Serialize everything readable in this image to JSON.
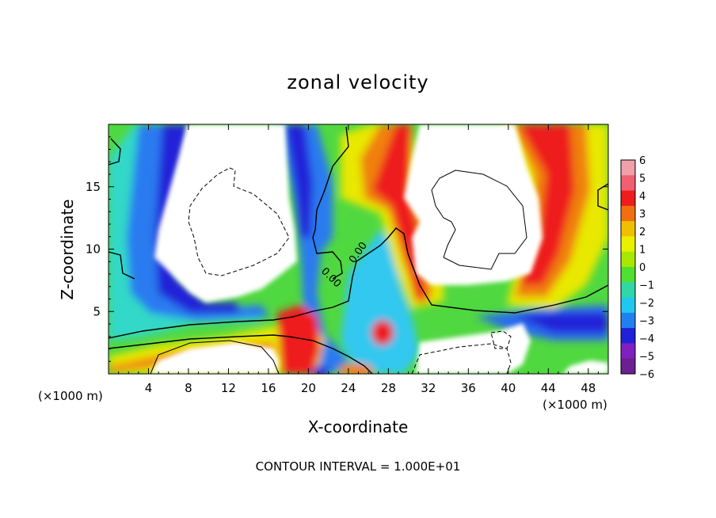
{
  "chart_data": {
    "type": "heatmap",
    "title": "zonal velocity",
    "xlabel": "X-coordinate",
    "ylabel": "Z-coordinate",
    "x_unit_label": "(×1000 m)",
    "x_unit_label_right": "(×1000 m)",
    "xlim": [
      0,
      50
    ],
    "ylim": [
      0,
      20
    ],
    "xticks": [
      4,
      8,
      12,
      16,
      20,
      24,
      28,
      32,
      36,
      40,
      44,
      48
    ],
    "xtick_labels": [
      "4",
      "8",
      "12",
      "16",
      "20",
      "24",
      "28",
      "32",
      "36",
      "40",
      "44",
      "48"
    ],
    "yticks": [
      5,
      10,
      15
    ],
    "ytick_labels": [
      "5",
      "10",
      "15"
    ],
    "colorbar": {
      "levels": [
        6,
        5,
        4,
        3,
        2,
        1,
        0,
        -1,
        -2,
        -3,
        -4,
        -5,
        -6
      ],
      "labels": [
        "6",
        "5",
        "4",
        "3",
        "2",
        "1",
        "0",
        "−1",
        "−2",
        "−3",
        "−4",
        "−5",
        "−6"
      ],
      "colors": [
        "#f0a0a8",
        "#f06070",
        "#ee1c1c",
        "#f07010",
        "#f0c000",
        "#e8f000",
        "#a8e800",
        "#50e030",
        "#30d8a8",
        "#20c8f0",
        "#2080f0",
        "#2020d8",
        "#8020c0",
        "#6a2090"
      ]
    },
    "contour_labels": [
      "0.00",
      "0.00"
    ],
    "footer": "CONTOUR INTERVAL = 1.000E+01"
  }
}
